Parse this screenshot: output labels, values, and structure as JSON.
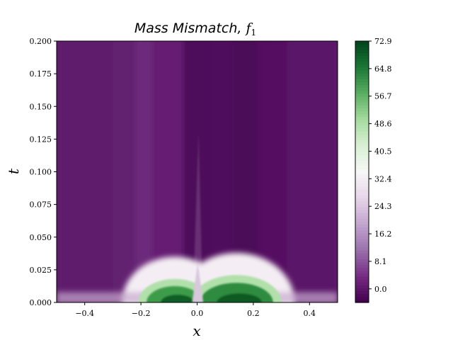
{
  "chart_data": {
    "type": "heatmap",
    "title": "Mass Mismatch, ",
    "title_symbol": "f",
    "title_subscript": "1",
    "xlabel": "x",
    "ylabel": "t",
    "xlim": [
      -0.5,
      0.5
    ],
    "ylim": [
      0.0,
      0.2
    ],
    "x_ticks": [
      -0.4,
      -0.2,
      0.0,
      0.2,
      0.4
    ],
    "x_tick_labels": [
      "−0.4",
      "−0.2",
      "0.0",
      "0.2",
      "0.4"
    ],
    "y_ticks": [
      0.0,
      0.025,
      0.05,
      0.075,
      0.1,
      0.125,
      0.15,
      0.175,
      0.2
    ],
    "y_tick_labels": [
      "0.000",
      "0.025",
      "0.050",
      "0.075",
      "0.100",
      "0.125",
      "0.150",
      "0.175",
      "0.200"
    ],
    "colormap": "PRGn",
    "colorbar": {
      "vmin": -4.0,
      "vmax": 72.9,
      "ticks": [
        0.0,
        8.1,
        16.2,
        24.3,
        32.4,
        40.5,
        48.6,
        56.7,
        64.8,
        72.9
      ],
      "tick_labels": [
        "0.0",
        "8.1",
        "16.2",
        "24.3",
        "32.4",
        "40.5",
        "48.6",
        "56.7",
        "64.8",
        "72.9"
      ]
    },
    "features": [
      {
        "x": -0.08,
        "t": 0.0,
        "value": 72.9
      },
      {
        "x": 0.15,
        "t": 0.0,
        "value": 72.9
      }
    ],
    "background_value": 0.0,
    "grid": false
  }
}
